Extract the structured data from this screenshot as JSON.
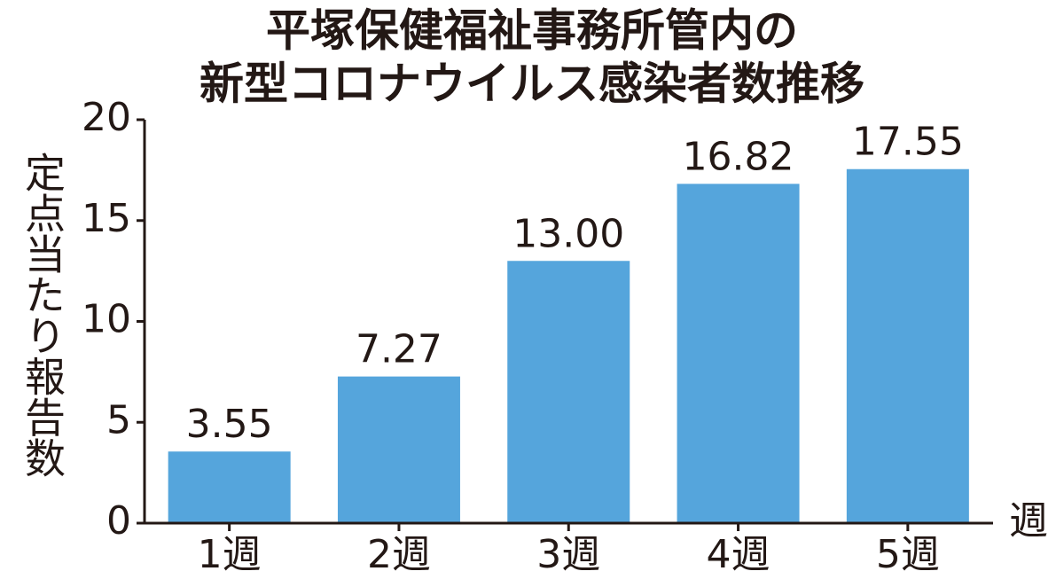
{
  "chart_data": {
    "type": "bar",
    "title": [
      "平塚保健福祉事務所管内の",
      "新型コロナウイルス感染者数推移"
    ],
    "y_label": "定点当たり報告数",
    "x_label": "週",
    "categories": [
      "1週",
      "2週",
      "3週",
      "4週",
      "5週"
    ],
    "values": [
      3.55,
      7.27,
      13.0,
      16.82,
      17.55
    ],
    "value_labels": [
      "3.55",
      "7.27",
      "13.00",
      "16.82",
      "17.55"
    ],
    "color": "#55a5dc",
    "ylim": [
      0,
      20
    ],
    "yticks": [
      0,
      5,
      10,
      15,
      20
    ],
    "grid": false
  }
}
